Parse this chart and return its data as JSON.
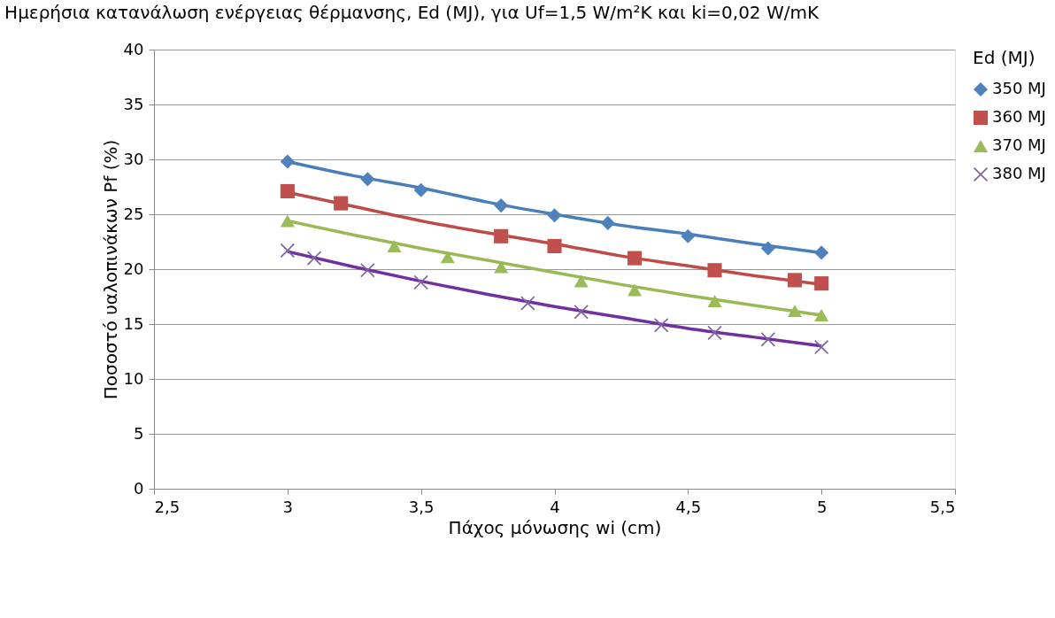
{
  "chart_data": {
    "type": "scatter",
    "title": "Ημερήσια κατανάλωση ενέργειας θέρμανσης, Ed (MJ), για Uf=1,5 W/m²K  και ki=0,02 W/mK",
    "xlabel": "Πάχος μόνωσης wi (cm)",
    "ylabel": "Ποσοστό υαλοπινάκων Pf (%)",
    "legend_title": "Ed (MJ)",
    "xlim": [
      2.5,
      5.5
    ],
    "xticks": [
      {
        "value": 2.5,
        "label": "2,5"
      },
      3,
      {
        "value": 3.5,
        "label": "3,5"
      },
      4,
      {
        "value": 4.5,
        "label": "4,5"
      },
      5,
      {
        "value": 5.5,
        "label": "5,5"
      }
    ],
    "ylim": [
      0,
      40
    ],
    "yticks": [
      0,
      5,
      10,
      15,
      20,
      25,
      30,
      35,
      40
    ],
    "grid": "y",
    "legend": "right",
    "series": [
      {
        "type": "line",
        "color": "#4a7ebb",
        "x": [
          3,
          3.25,
          3.5,
          3.75,
          4,
          4.25,
          4.5,
          4.75,
          5
        ],
        "values": [
          29.8,
          28.5,
          27.4,
          26.1,
          25.0,
          24.0,
          23.2,
          22.3,
          21.5
        ]
      },
      {
        "type": "line",
        "color": "#be4b48",
        "x": [
          3,
          3.25,
          3.5,
          3.75,
          4,
          4.25,
          4.5,
          4.75,
          5
        ],
        "values": [
          27.0,
          25.7,
          24.4,
          23.3,
          22.3,
          21.2,
          20.3,
          19.4,
          18.6
        ]
      },
      {
        "type": "line",
        "color": "#98b954",
        "x": [
          3,
          3.25,
          3.5,
          3.75,
          4,
          4.25,
          4.5,
          4.75,
          5
        ],
        "values": [
          24.4,
          23.1,
          21.9,
          20.8,
          19.7,
          18.6,
          17.6,
          16.7,
          15.8
        ]
      },
      {
        "type": "line",
        "color": "#7030a0",
        "x": [
          3,
          3.25,
          3.5,
          3.75,
          4,
          4.25,
          4.5,
          4.75,
          5
        ],
        "values": [
          21.6,
          20.2,
          18.9,
          17.7,
          16.6,
          15.6,
          14.6,
          13.8,
          13.0
        ]
      },
      {
        "name": "350 MJ",
        "color": "#4f81bd",
        "marker": "diamond",
        "x": [
          3,
          3.3,
          3.5,
          3.8,
          4,
          4.2,
          4.5,
          4.8,
          5
        ],
        "values": [
          29.8,
          28.2,
          27.2,
          25.8,
          24.9,
          24.2,
          23.0,
          21.9,
          21.5
        ]
      },
      {
        "name": "360 MJ",
        "color": "#c0504d",
        "marker": "square",
        "x": [
          3,
          3.2,
          3.8,
          4,
          4.3,
          4.6,
          4.9,
          5
        ],
        "values": [
          27.1,
          26.0,
          23.0,
          22.1,
          21.0,
          19.9,
          19.0,
          18.7
        ]
      },
      {
        "name": "370 MJ",
        "color": "#9bbb59",
        "marker": "triangle",
        "x": [
          3,
          3.4,
          3.6,
          3.8,
          4.1,
          4.3,
          4.6,
          4.9,
          5
        ],
        "values": [
          24.4,
          22.1,
          21.1,
          20.2,
          18.9,
          18.1,
          17.1,
          16.2,
          15.8
        ]
      },
      {
        "name": "380 MJ",
        "color": "#8064a2",
        "marker": "cross",
        "x": [
          3,
          3.1,
          3.3,
          3.5,
          3.9,
          4.1,
          4.4,
          4.6,
          4.8,
          5
        ],
        "values": [
          21.7,
          21.0,
          19.9,
          18.8,
          16.9,
          16.1,
          14.9,
          14.2,
          13.6,
          12.9
        ]
      }
    ]
  }
}
